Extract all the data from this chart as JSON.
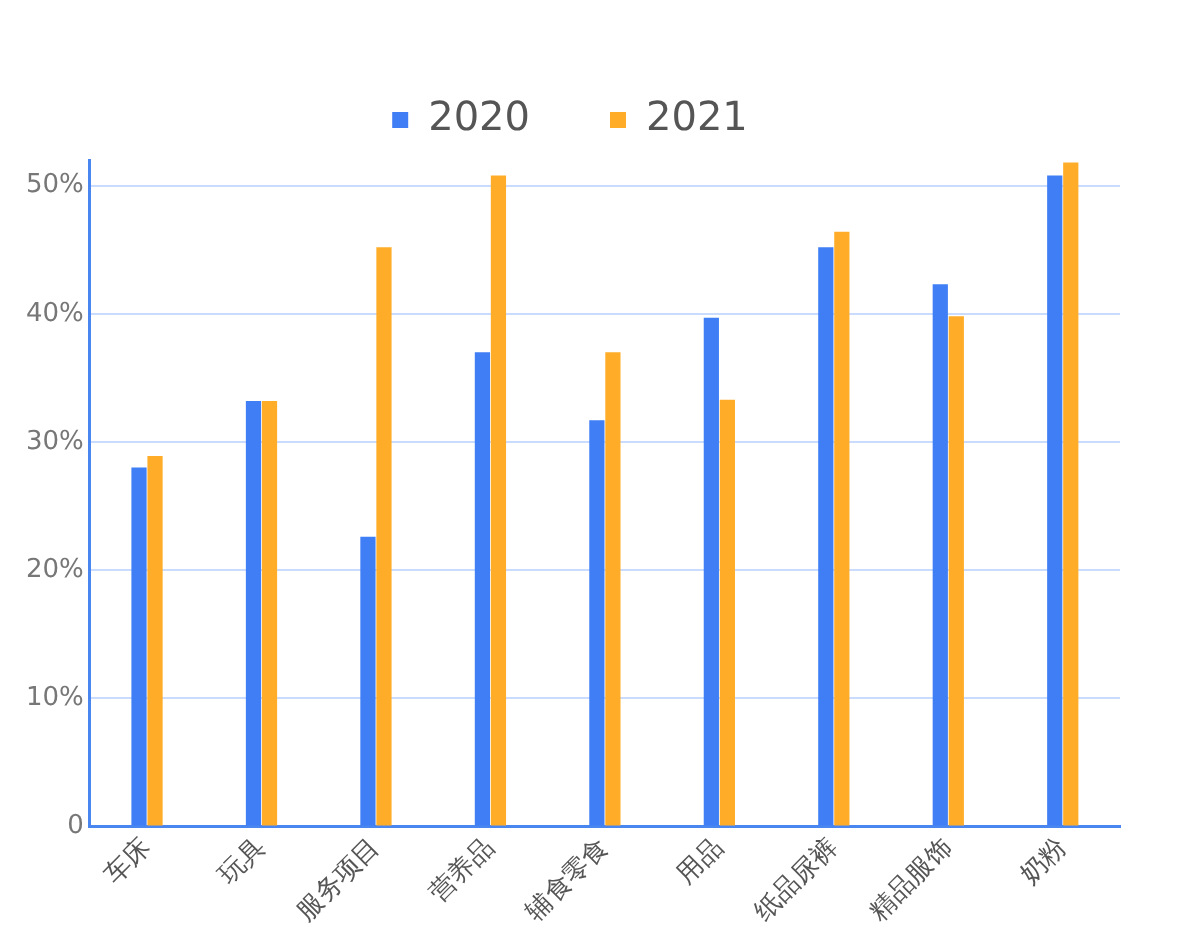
{
  "chart_data": {
    "type": "bar",
    "categories": [
      "车床",
      "玩具",
      "服务项目",
      "营养品",
      "辅食零食",
      "用品",
      "纸品尿裤",
      "精品服饰",
      "奶粉"
    ],
    "series": [
      {
        "name": "2020",
        "color": "#3f7ef5",
        "values": [
          28.0,
          33.2,
          22.6,
          37.0,
          31.7,
          39.7,
          45.2,
          42.3,
          50.8
        ]
      },
      {
        "name": "2021",
        "color": "#ffad28",
        "values": [
          28.9,
          33.2,
          45.2,
          50.8,
          37.0,
          33.3,
          46.4,
          39.8,
          51.8
        ]
      }
    ],
    "ylim": [
      0,
      52
    ],
    "yticks": [
      0,
      {
        "value": 10,
        "label": "10%"
      },
      {
        "value": 20,
        "label": "20%"
      },
      {
        "value": 30,
        "label": "30%"
      },
      {
        "value": 40,
        "label": "40%"
      },
      {
        "value": 50,
        "label": "50%"
      }
    ],
    "grid": "y",
    "legend": "top"
  }
}
